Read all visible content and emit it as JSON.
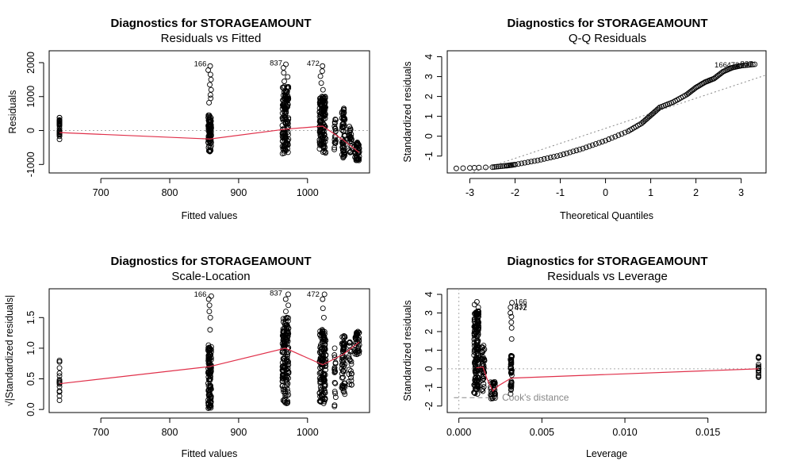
{
  "chart_data": [
    {
      "type": "scatter",
      "title": "Diagnostics for STORAGEAMOUNT",
      "subtitle": "Residuals vs Fitted",
      "xlabel": "Fitted values",
      "ylabel": "Residuals",
      "xlim": [
        625,
        1090
      ],
      "ylim": [
        -1250,
        2350
      ],
      "xticks": [
        "700",
        "800",
        "900",
        "1000"
      ],
      "xtick_values": [
        700,
        800,
        900,
        1000
      ],
      "yticks": [
        "-1000",
        "0",
        "1000",
        "2000"
      ],
      "ytick_values": [
        -1000,
        0,
        1000,
        2000
      ],
      "reference_line": 0,
      "groups": [
        {
          "x": 640,
          "min": -260,
          "max": 380,
          "n": 26,
          "extras": [],
          "jitter": 0
        },
        {
          "x": 858,
          "min": -620,
          "max": 450,
          "n": 90,
          "extras": [
            1500,
            1650,
            1780,
            1900,
            820,
            950,
            1050,
            1200,
            1350
          ],
          "jitter": 2
        },
        {
          "x": 968,
          "min": -680,
          "max": 1300,
          "n": 140,
          "extras": [
            1450,
            1580,
            1700,
            1850,
            1950
          ],
          "jitter": 4
        },
        {
          "x": 1022,
          "min": -660,
          "max": 1000,
          "n": 140,
          "extras": [
            1200,
            1400,
            1600,
            1750,
            1900
          ],
          "jitter": 4
        },
        {
          "x": 1040,
          "min": -560,
          "max": 330,
          "n": 18,
          "extras": [],
          "jitter": 1
        },
        {
          "x": 1052,
          "min": -800,
          "max": 650,
          "n": 55,
          "extras": [],
          "jitter": 2
        },
        {
          "x": 1062,
          "min": -650,
          "max": 120,
          "n": 24,
          "extras": [],
          "jitter": 2
        },
        {
          "x": 1072,
          "min": -880,
          "max": -350,
          "n": 40,
          "extras": [],
          "jitter": 3
        }
      ],
      "smooth": [
        [
          640,
          -60
        ],
        [
          858,
          -250
        ],
        [
          968,
          40
        ],
        [
          1022,
          130
        ],
        [
          1052,
          -280
        ],
        [
          1075,
          -650
        ]
      ],
      "labels": [
        {
          "text": "166",
          "x": 858,
          "y": 1960
        },
        {
          "text": "837",
          "x": 968,
          "y": 1990
        },
        {
          "text": "472",
          "x": 1022,
          "y": 1975
        }
      ]
    },
    {
      "type": "scatter",
      "title": "Diagnostics for STORAGEAMOUNT",
      "subtitle": "Q-Q Residuals",
      "xlabel": "Theoretical Quantiles",
      "ylabel": "Standardized residuals",
      "xlim": [
        -3.5,
        3.55
      ],
      "ylim": [
        -1.85,
        4.3
      ],
      "xticks": [
        "-3",
        "-2",
        "-1",
        "0",
        "1",
        "2",
        "3"
      ],
      "xtick_values": [
        -3,
        -2,
        -1,
        0,
        1,
        2,
        3
      ],
      "yticks": [
        "-1",
        "0",
        "1",
        "2",
        "3",
        "4"
      ],
      "ytick_values": [
        -1,
        0,
        1,
        2,
        3,
        4
      ],
      "curve": [
        [
          -3.3,
          -1.62
        ],
        [
          -3.0,
          -1.6
        ],
        [
          -2.8,
          -1.58
        ],
        [
          -2.5,
          -1.56
        ],
        [
          -2.2,
          -1.49
        ],
        [
          -2.0,
          -1.43
        ],
        [
          -1.5,
          -1.22
        ],
        [
          -1.0,
          -0.96
        ],
        [
          -0.5,
          -0.62
        ],
        [
          0.0,
          -0.22
        ],
        [
          0.5,
          0.25
        ],
        [
          0.8,
          0.65
        ],
        [
          1.0,
          1.05
        ],
        [
          1.2,
          1.45
        ],
        [
          1.5,
          1.72
        ],
        [
          1.8,
          2.1
        ],
        [
          2.0,
          2.45
        ],
        [
          2.2,
          2.72
        ],
        [
          2.4,
          2.9
        ],
        [
          2.6,
          3.25
        ],
        [
          2.8,
          3.45
        ],
        [
          3.0,
          3.55
        ],
        [
          3.3,
          3.62
        ]
      ],
      "ref_line": [
        [
          -3.5,
          -2.25
        ],
        [
          3.55,
          3.08
        ]
      ],
      "labels": [
        {
          "text": "166",
          "x": 2.55,
          "y": 3.58
        },
        {
          "text": "472",
          "x": 2.82,
          "y": 3.58
        },
        {
          "text": "837",
          "x": 3.12,
          "y": 3.64
        }
      ]
    },
    {
      "type": "scatter",
      "title": "Diagnostics for STORAGEAMOUNT",
      "subtitle": "Scale-Location",
      "xlabel": "Fitted values",
      "ylabel": "√|Standardized residuals|",
      "xlim": [
        625,
        1090
      ],
      "ylim": [
        -0.05,
        1.97
      ],
      "xticks": [
        "700",
        "800",
        "900",
        "1000"
      ],
      "xtick_values": [
        700,
        800,
        900,
        1000
      ],
      "yticks": [
        "0.0",
        "0.5",
        "1.0",
        "1.5"
      ],
      "ytick_values": [
        0,
        0.5,
        1.0,
        1.5
      ],
      "groups": [
        {
          "x": 640,
          "min": 0.15,
          "max": 0.8,
          "n": 16,
          "extras": [],
          "jitter": 0
        },
        {
          "x": 858,
          "min": 0.02,
          "max": 1.05,
          "n": 110,
          "extras": [
            1.3,
            1.5,
            1.6,
            1.7,
            1.8,
            1.85
          ],
          "jitter": 2
        },
        {
          "x": 968,
          "min": 0.1,
          "max": 1.5,
          "n": 160,
          "extras": [
            1.6,
            1.7,
            1.8,
            1.88
          ],
          "jitter": 4
        },
        {
          "x": 1022,
          "min": 0.1,
          "max": 1.3,
          "n": 140,
          "extras": [
            1.5,
            1.65,
            1.8,
            1.88
          ],
          "jitter": 4
        },
        {
          "x": 1040,
          "min": 0.05,
          "max": 1.0,
          "n": 16,
          "extras": [],
          "jitter": 1
        },
        {
          "x": 1052,
          "min": 0.25,
          "max": 1.2,
          "n": 55,
          "extras": [],
          "jitter": 2
        },
        {
          "x": 1062,
          "min": 0.4,
          "max": 1.1,
          "n": 22,
          "extras": [],
          "jitter": 2
        },
        {
          "x": 1072,
          "min": 0.9,
          "max": 1.27,
          "n": 40,
          "extras": [],
          "jitter": 3
        }
      ],
      "smooth": [
        [
          640,
          0.42
        ],
        [
          858,
          0.7
        ],
        [
          968,
          1.0
        ],
        [
          1022,
          0.73
        ],
        [
          1052,
          0.9
        ],
        [
          1075,
          1.1
        ]
      ],
      "labels": [
        {
          "text": "166",
          "x": 858,
          "y": 1.88
        },
        {
          "text": "837",
          "x": 968,
          "y": 1.9
        },
        {
          "text": "472",
          "x": 1022,
          "y": 1.88
        }
      ]
    },
    {
      "type": "scatter",
      "title": "Diagnostics for STORAGEAMOUNT",
      "subtitle": "Residuals vs Leverage",
      "xlabel": "Leverage",
      "ylabel": "Standardized residuals",
      "xlim": [
        -0.0007,
        0.0185
      ],
      "ylim": [
        -2.35,
        4.3
      ],
      "xticks": [
        "0.000",
        "0.005",
        "0.010",
        "0.015"
      ],
      "xtick_values": [
        0,
        0.005,
        0.01,
        0.015
      ],
      "yticks": [
        "-2",
        "-1",
        "0",
        "1",
        "2",
        "3",
        "4"
      ],
      "ytick_values": [
        -2,
        -1,
        0,
        1,
        2,
        3,
        4
      ],
      "groups": [
        {
          "x": 0.00105,
          "min": -1.35,
          "max": 3.1,
          "n": 170,
          "extras": [
            3.3,
            3.45,
            3.6
          ],
          "jitter": 3
        },
        {
          "x": 0.00145,
          "min": -1.2,
          "max": 1.25,
          "n": 40,
          "extras": [],
          "jitter": 2
        },
        {
          "x": 0.00205,
          "min": -1.6,
          "max": -0.7,
          "n": 30,
          "extras": [],
          "jitter": 3
        },
        {
          "x": 0.00315,
          "min": -1.35,
          "max": 0.7,
          "n": 40,
          "extras": [
            1.6,
            2.2,
            2.5,
            2.8,
            3.0,
            3.3,
            3.55
          ],
          "jitter": 1
        },
        {
          "x": 0.01805,
          "min": -0.45,
          "max": 0.65,
          "n": 16,
          "extras": [],
          "jitter": 0
        }
      ],
      "smooth": [
        [
          0.00105,
          0.05
        ],
        [
          0.00145,
          0.1
        ],
        [
          0.0017,
          -0.55
        ],
        [
          0.00205,
          -1.2
        ],
        [
          0.0024,
          -0.9
        ],
        [
          0.00315,
          -0.5
        ],
        [
          0.01805,
          0.0
        ]
      ],
      "labels": [
        {
          "text": "166",
          "x": 0.00335,
          "y": 3.6
        },
        {
          "text": "837",
          "x": 0.00335,
          "y": 3.33
        },
        {
          "text": "472",
          "x": 0.00335,
          "y": 3.28
        }
      ],
      "legend": {
        "text": "Cook's distance"
      }
    }
  ]
}
